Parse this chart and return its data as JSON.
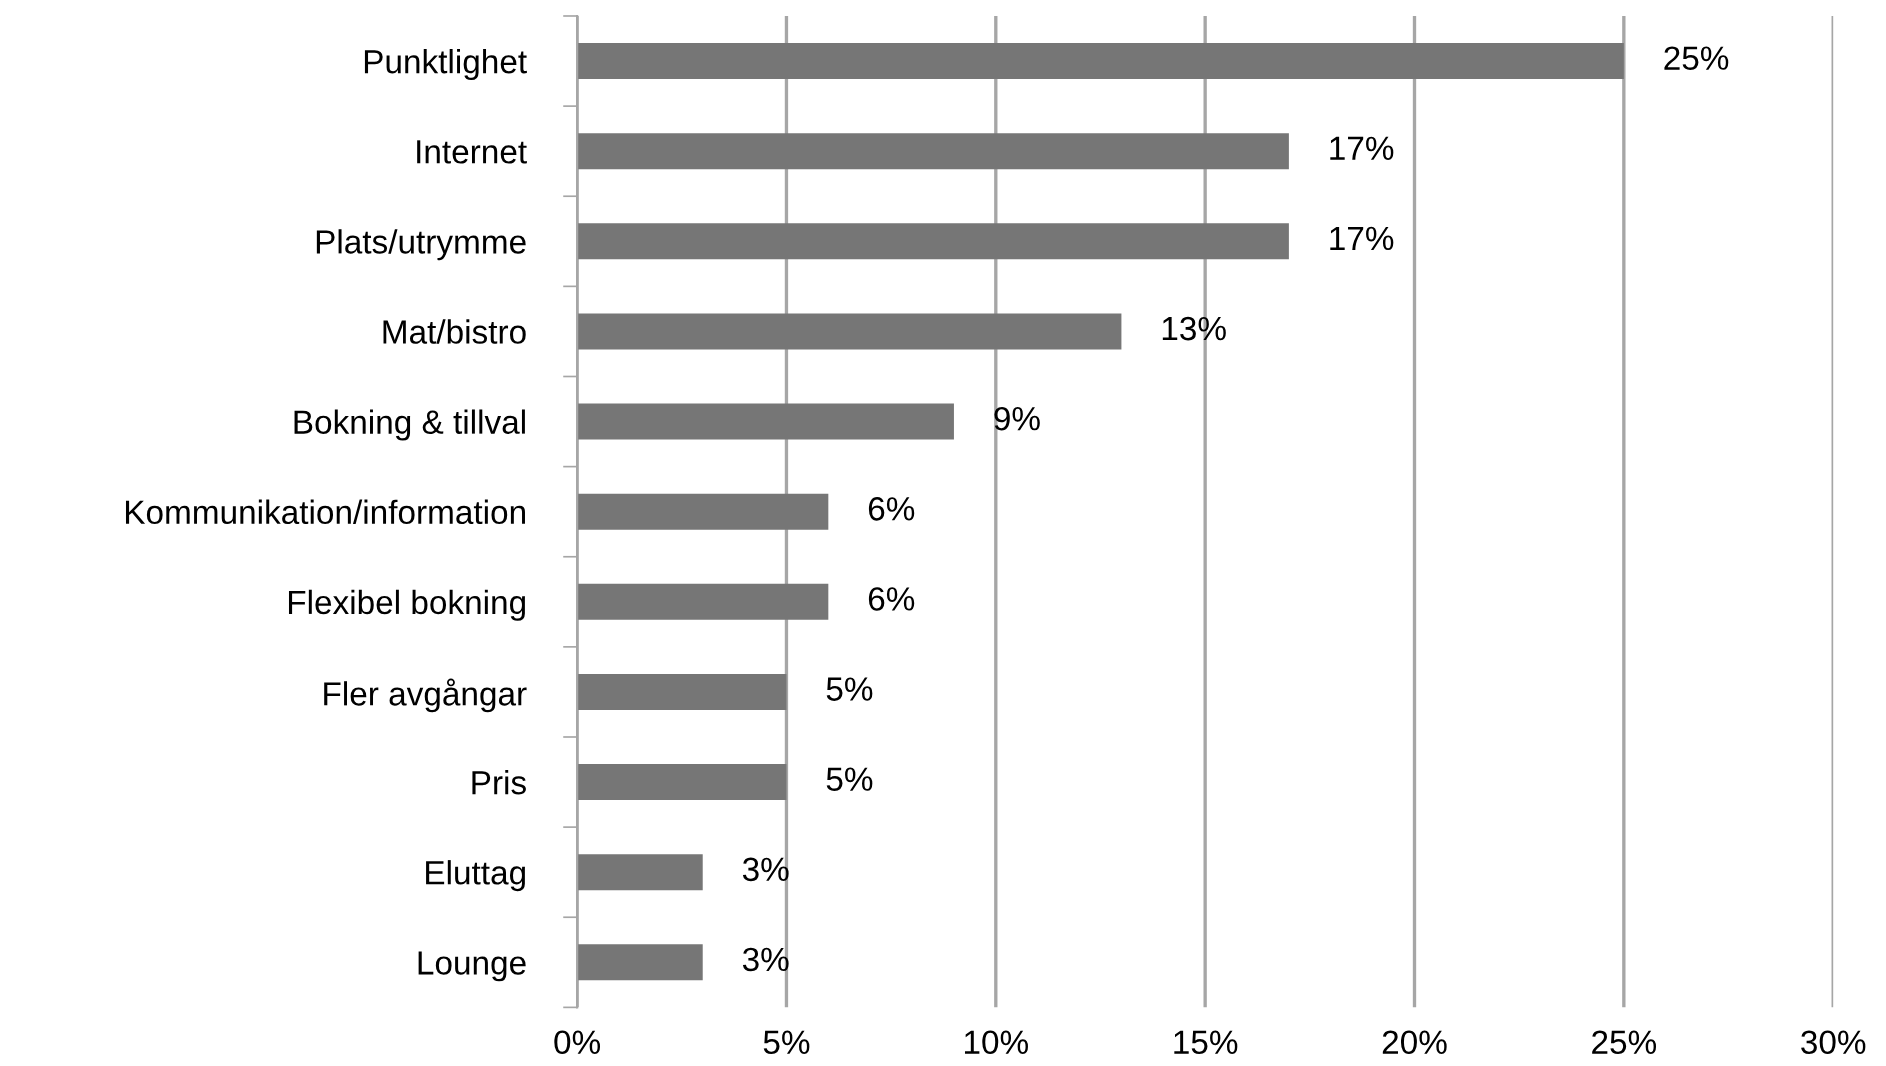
{
  "chart_data": {
    "type": "bar",
    "orientation": "horizontal",
    "categories": [
      "Punktlighet",
      "Internet",
      "Plats/utrymme",
      "Mat/bistro",
      "Bokning & tillval",
      "Kommunikation/information",
      "Flexibel bokning",
      "Fler avgångar",
      "Pris",
      "Eluttag",
      "Lounge"
    ],
    "values": [
      25,
      17,
      17,
      13,
      9,
      6,
      6,
      5,
      5,
      3,
      3
    ],
    "value_labels": [
      "25%",
      "17%",
      "17%",
      "13%",
      "9%",
      "6%",
      "6%",
      "5%",
      "5%",
      "3%",
      "3%"
    ],
    "color": "#767676",
    "xlim": [
      0,
      30
    ],
    "xticks": [
      {
        "value": 0,
        "label": "0%"
      },
      {
        "value": 5,
        "label": "5%"
      },
      {
        "value": 10,
        "label": "10%"
      },
      {
        "value": 15,
        "label": "15%"
      },
      {
        "value": 20,
        "label": "20%"
      },
      {
        "value": 25,
        "label": "25%"
      },
      {
        "value": 30,
        "label": "30%"
      }
    ],
    "grid": "x",
    "legend": false
  }
}
